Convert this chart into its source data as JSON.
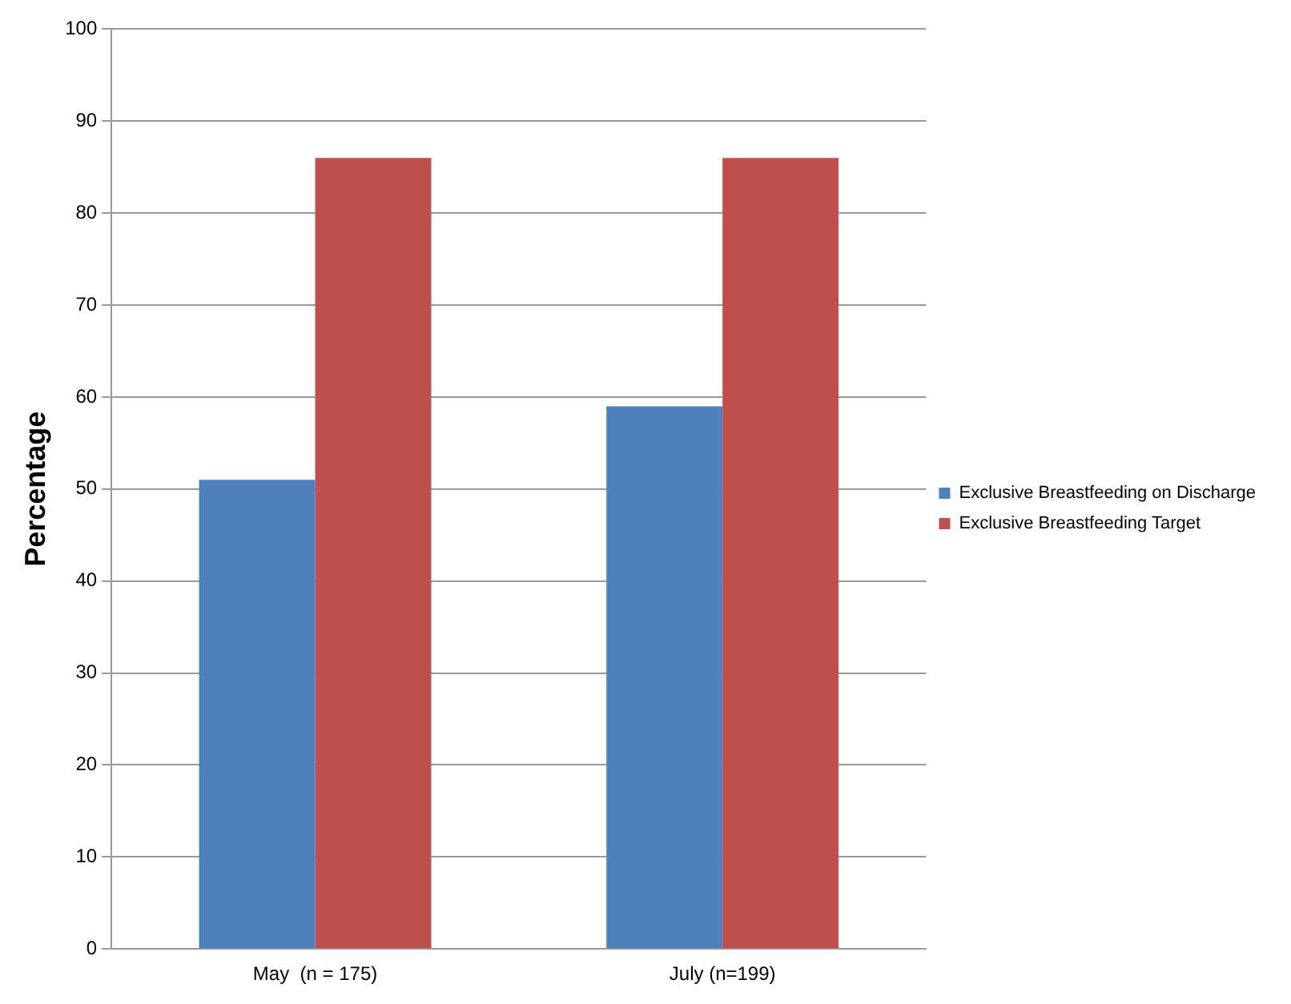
{
  "chart_data": {
    "type": "bar",
    "ylabel": "Percentage",
    "categories": [
      "May  (n = 175)",
      "July (n=199)"
    ],
    "series": [
      {
        "name": "Exclusive Breastfeeding on Discharge",
        "color": "#4f81bd",
        "values": [
          51,
          59
        ]
      },
      {
        "name": "Exclusive Breastfeeding Target",
        "color": "#c0504d",
        "values": [
          86,
          86
        ]
      }
    ],
    "ylim": [
      0,
      100
    ],
    "yticks": [
      0,
      10,
      20,
      30,
      40,
      50,
      60,
      70,
      80,
      90,
      100
    ],
    "grid": "y",
    "legend": "right"
  }
}
